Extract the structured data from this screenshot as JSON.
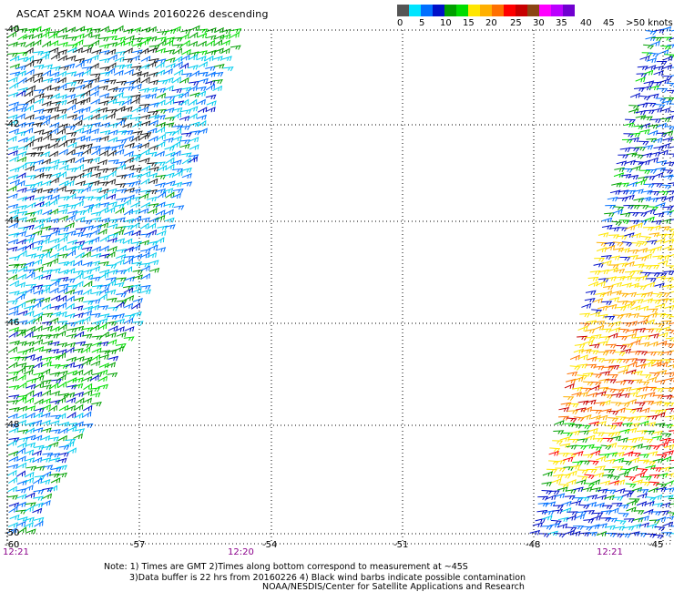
{
  "title": "ASCAT 25KM NOAA Winds 20160226 descending",
  "legend": {
    "colors": [
      "#555555",
      "#00e5ff",
      "#0070ff",
      "#0010c8",
      "#00a000",
      "#00dd00",
      "#ffe600",
      "#ffb000",
      "#ff7000",
      "#ff0000",
      "#c80000",
      "#8b4513",
      "#ff00ff",
      "#bb00ff",
      "#7000d0",
      "#ffffff"
    ],
    "labels": [
      "0",
      "5",
      "10",
      "15",
      "20",
      "25",
      "30",
      "35",
      "40",
      "45",
      ">50 knots"
    ]
  },
  "axes": {
    "lon_labels": [
      "-60",
      "-57",
      "-54",
      "-51",
      "-48",
      "-45"
    ],
    "lat_labels": [
      "-40",
      "-42",
      "-44",
      "-46",
      "-48",
      "-50"
    ]
  },
  "time_labels": [
    "12:21",
    "12:20",
    "12:21"
  ],
  "notes": [
    "Note: 1) Times are GMT 2)Times along bottom correspond to measurement at ~45S",
    "3)Data buffer is 22 hrs from 20160226 4) Black wind barbs indicate possible contamination"
  ],
  "credit": "NOAA/NESDIS/Center for Satellite Applications and Research"
}
